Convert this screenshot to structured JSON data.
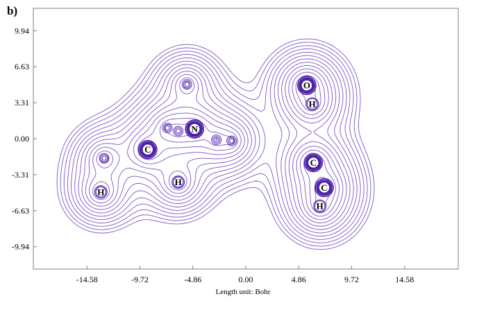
{
  "panel_label": "b)",
  "length_unit_label": "Length unit: Bohr",
  "colors": {
    "contour": "#7a55c8",
    "contour_dense": "#4a1ca8",
    "frame": "#7f7f7f"
  },
  "x_ticks": [
    {
      "value": -14.58,
      "label": "-14.58"
    },
    {
      "value": -9.72,
      "label": "-9.72"
    },
    {
      "value": -4.86,
      "label": "-4.86"
    },
    {
      "value": 0.0,
      "label": "0.00"
    },
    {
      "value": 4.86,
      "label": "4.86"
    },
    {
      "value": 9.72,
      "label": "9.72"
    },
    {
      "value": 14.58,
      "label": "14.58"
    }
  ],
  "y_ticks": [
    {
      "value": 9.94,
      "label": "9.94"
    },
    {
      "value": 6.63,
      "label": "6.63"
    },
    {
      "value": 3.31,
      "label": "3.31"
    },
    {
      "value": 0.0,
      "label": "0.00"
    },
    {
      "value": -3.31,
      "label": "-3.31"
    },
    {
      "value": -6.63,
      "label": "-6.63"
    },
    {
      "value": -9.94,
      "label": "-9.94"
    }
  ],
  "atoms": [
    {
      "symbol": "N",
      "x": -4.7,
      "y": 0.9
    },
    {
      "symbol": "C",
      "x": -9.0,
      "y": -1.0
    },
    {
      "symbol": "H",
      "x": -13.3,
      "y": -4.9
    },
    {
      "symbol": "H",
      "x": -6.2,
      "y": -4.0
    },
    {
      "symbol": "O",
      "x": 5.6,
      "y": 4.9
    },
    {
      "symbol": "H",
      "x": 6.1,
      "y": 3.2
    },
    {
      "symbol": "C",
      "x": 6.2,
      "y": -2.2
    },
    {
      "symbol": "C",
      "x": 7.2,
      "y": -4.5
    },
    {
      "symbol": "H",
      "x": 6.8,
      "y": -6.2
    }
  ],
  "extra_maxima": [
    {
      "x": -7.2,
      "y": 1.0
    },
    {
      "x": -6.2,
      "y": 0.7
    },
    {
      "x": -2.7,
      "y": -0.1
    },
    {
      "x": -1.3,
      "y": -0.2
    },
    {
      "x": -13.0,
      "y": -1.8
    },
    {
      "x": -5.4,
      "y": 5.0
    }
  ]
}
